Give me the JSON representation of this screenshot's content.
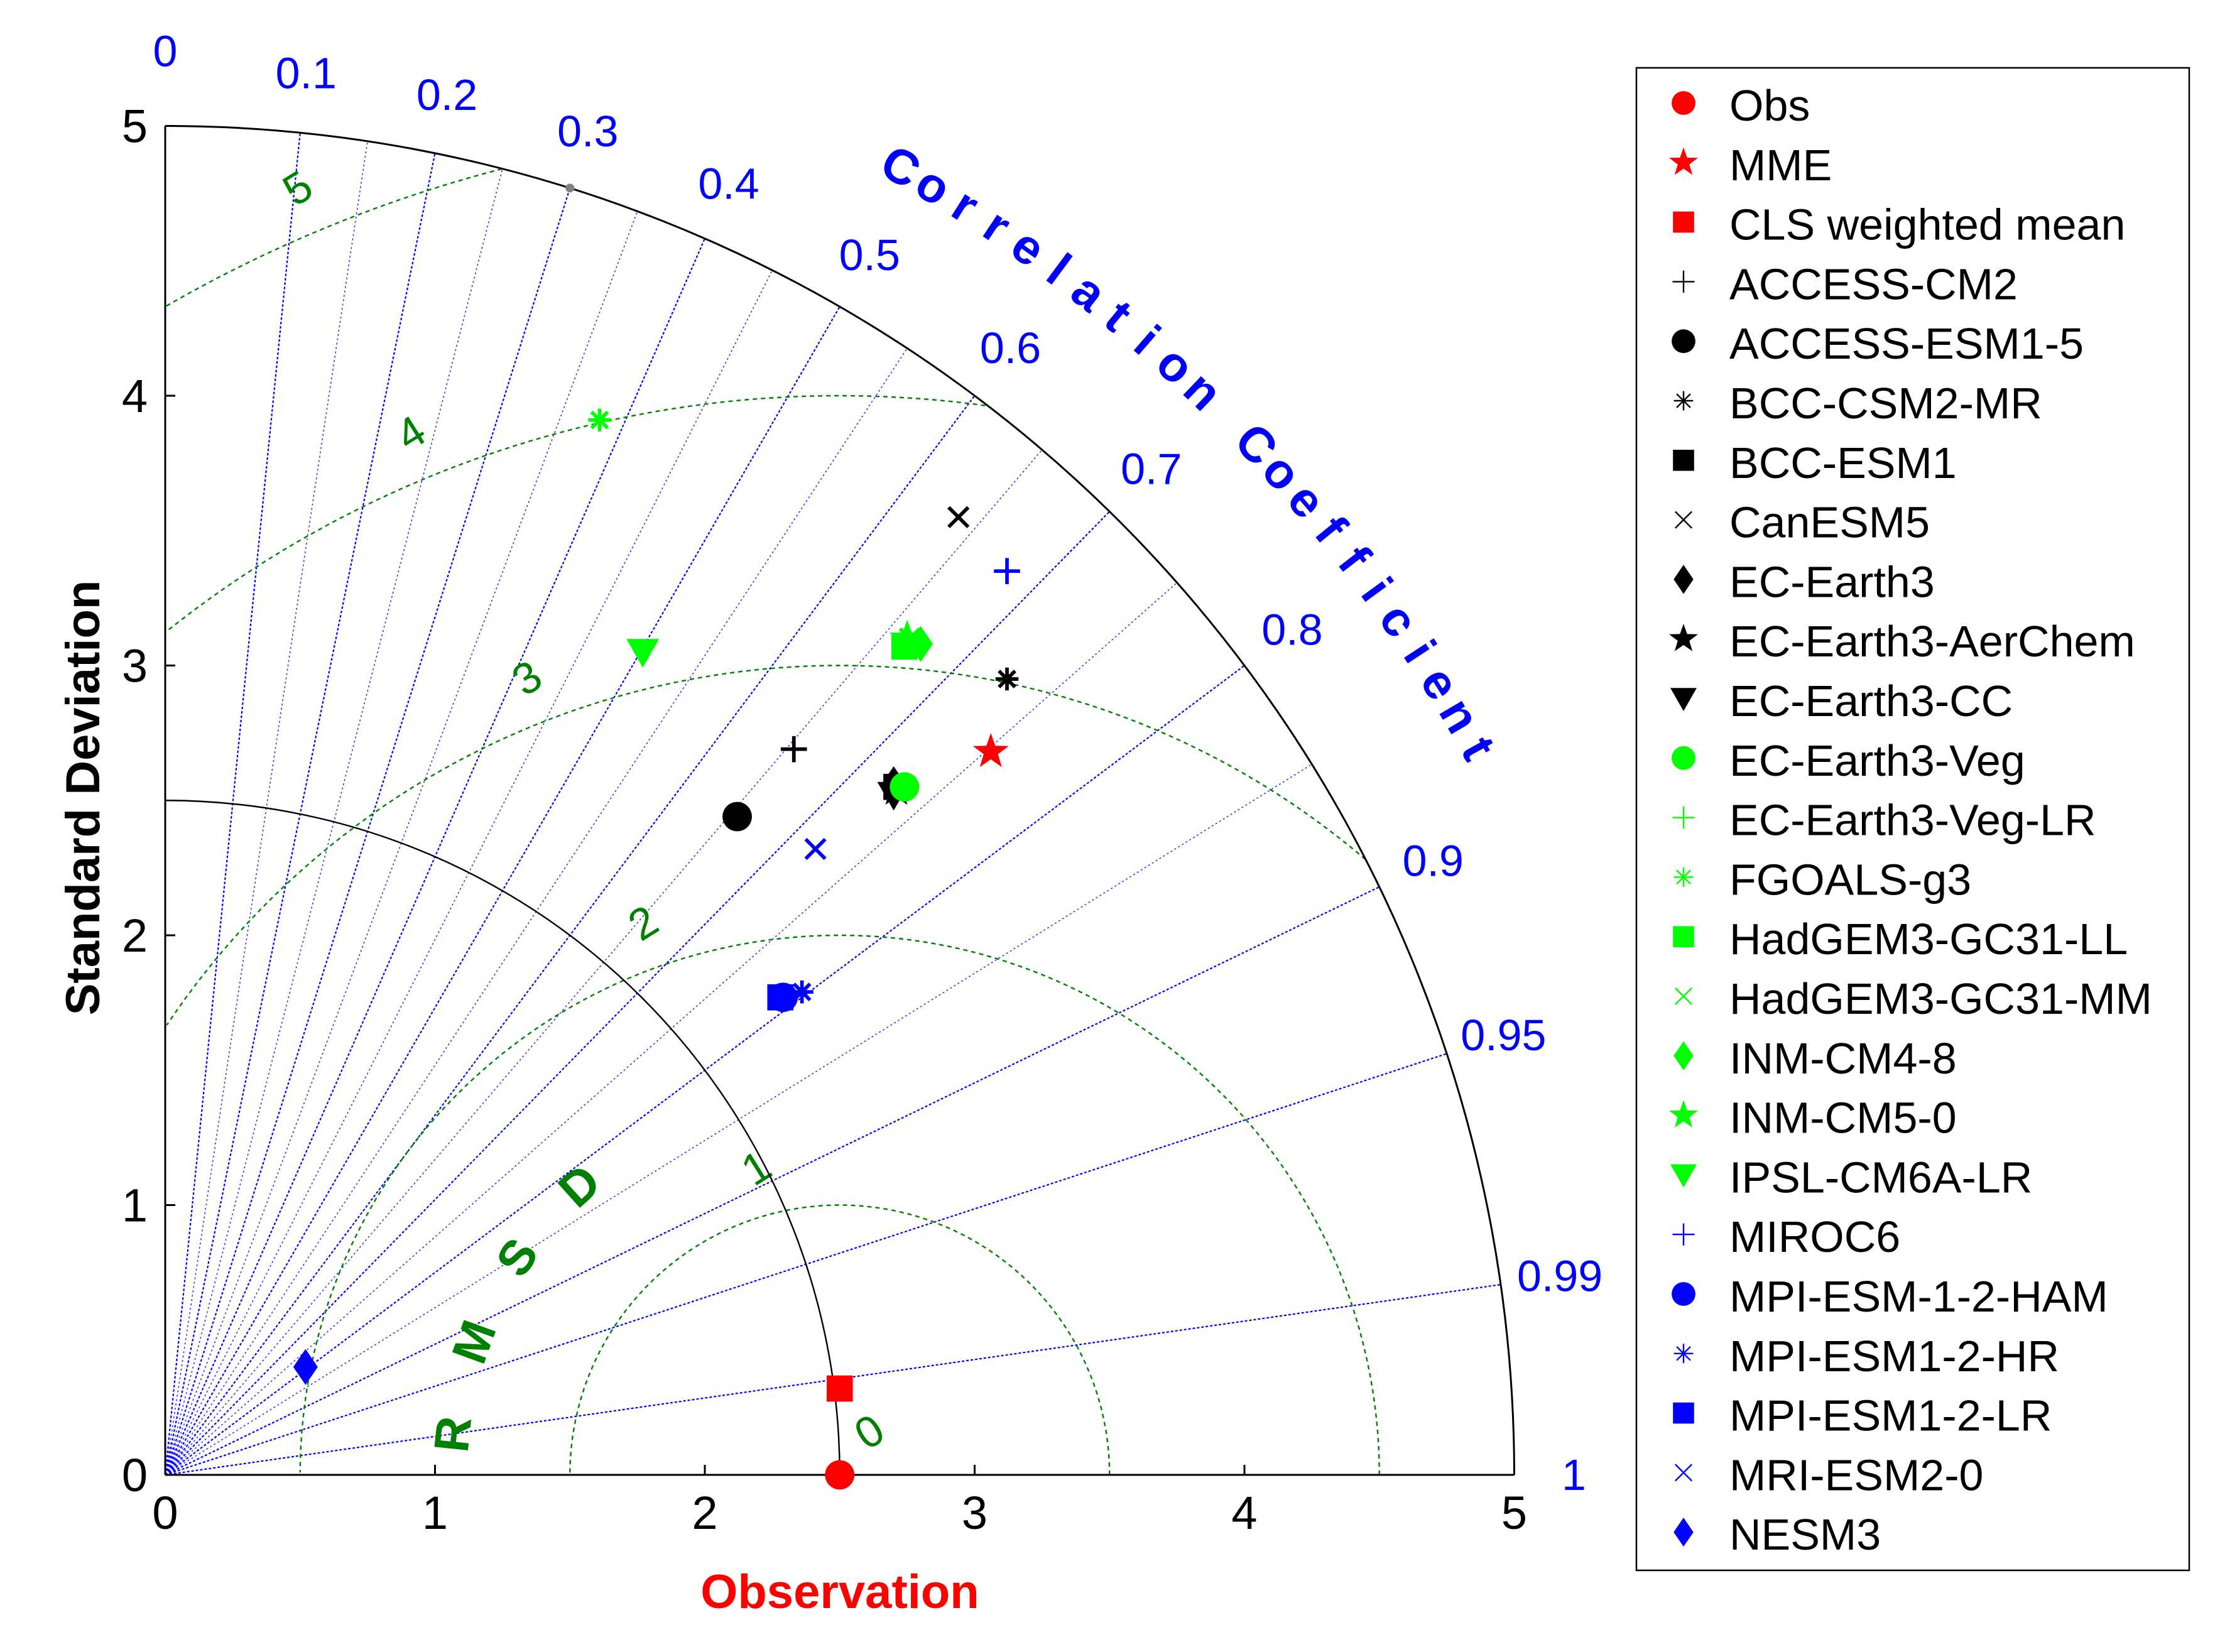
{
  "chart_data": {
    "type": "taylor_diagram",
    "xlabel": "Observation",
    "ylabel": "Standard Deviation",
    "corr_label": "Correlation Coefficient",
    "rms_label": "RMSD",
    "std_max": 5,
    "std_ticks": [
      "0",
      "1",
      "2",
      "3",
      "4",
      "5"
    ],
    "obs_std": 2.5,
    "corr_ticks": [
      {
        "value": 0,
        "label": "0"
      },
      {
        "value": 0.1,
        "label": "0.1"
      },
      {
        "value": 0.2,
        "label": "0.2"
      },
      {
        "value": 0.3,
        "label": "0.3"
      },
      {
        "value": 0.4,
        "label": "0.4"
      },
      {
        "value": 0.5,
        "label": "0.5"
      },
      {
        "value": 0.6,
        "label": "0.6"
      },
      {
        "value": 0.7,
        "label": "0.7"
      },
      {
        "value": 0.8,
        "label": "0.8"
      },
      {
        "value": 0.9,
        "label": "0.9"
      },
      {
        "value": 0.95,
        "label": "0.95"
      },
      {
        "value": 0.99,
        "label": "0.99"
      },
      {
        "value": 1,
        "label": "1"
      }
    ],
    "rms_contours": [
      {
        "value": 0,
        "label": "0"
      },
      {
        "value": 1,
        "label": "1"
      },
      {
        "value": 2,
        "label": "2"
      },
      {
        "value": 3,
        "label": "3"
      },
      {
        "value": 4,
        "label": "4"
      },
      {
        "value": 5,
        "label": "5"
      }
    ],
    "models": [
      {
        "name": "Obs",
        "x": 2.5,
        "y": 0.0,
        "marker": "circle-filled",
        "color": "#ff0000"
      },
      {
        "name": "MME",
        "x": 3.06,
        "y": 2.68,
        "marker": "star",
        "color": "#ff0000"
      },
      {
        "name": "CLS weighted mean",
        "x": 2.5,
        "y": 0.32,
        "marker": "square",
        "color": "#ff0000"
      },
      {
        "name": "ACCESS-CM2",
        "x": 2.33,
        "y": 2.69,
        "marker": "plus",
        "color": "#000000"
      },
      {
        "name": "ACCESS-ESM1-5",
        "x": 2.12,
        "y": 2.44,
        "marker": "circle-filled",
        "color": "#000000"
      },
      {
        "name": "BCC-CSM2-MR",
        "x": 3.12,
        "y": 2.95,
        "marker": "asterisk",
        "color": "#000000"
      },
      {
        "name": "BCC-ESM1",
        "x": 2.71,
        "y": 2.55,
        "marker": "square",
        "color": "#000000"
      },
      {
        "name": "CanESM5",
        "x": 2.94,
        "y": 3.55,
        "marker": "cross",
        "color": "#000000"
      },
      {
        "name": "EC-Earth3",
        "x": 2.7,
        "y": 2.56,
        "marker": "diamond",
        "color": "#000000"
      },
      {
        "name": "EC-Earth3-AerChem",
        "x": 2.71,
        "y": 2.54,
        "marker": "star",
        "color": "#000000"
      },
      {
        "name": "EC-Earth3-CC",
        "x": 2.7,
        "y": 2.52,
        "marker": "triangle-down",
        "color": "#000000"
      },
      {
        "name": "EC-Earth3-Veg",
        "x": 2.74,
        "y": 2.55,
        "marker": "circle-filled",
        "color": "#00ff00"
      },
      {
        "name": "EC-Earth3-Veg-LR",
        "x": 2.75,
        "y": 3.09,
        "marker": "plus",
        "color": "#00ff00"
      },
      {
        "name": "FGOALS-g3",
        "x": 1.61,
        "y": 3.91,
        "marker": "asterisk",
        "color": "#00ff00"
      },
      {
        "name": "HadGEM3-GC31-LL",
        "x": 2.74,
        "y": 3.07,
        "marker": "square",
        "color": "#00ff00"
      },
      {
        "name": "HadGEM3-GC31-MM",
        "x": 2.76,
        "y": 3.1,
        "marker": "cross",
        "color": "#00ff00"
      },
      {
        "name": "INM-CM4-8",
        "x": 2.8,
        "y": 3.08,
        "marker": "diamond",
        "color": "#00ff00"
      },
      {
        "name": "INM-CM5-0",
        "x": 2.75,
        "y": 3.1,
        "marker": "star",
        "color": "#00ff00"
      },
      {
        "name": "IPSL-CM6A-LR",
        "x": 1.77,
        "y": 3.05,
        "marker": "triangle-down",
        "color": "#00ff00"
      },
      {
        "name": "MIROC6",
        "x": 3.12,
        "y": 3.35,
        "marker": "plus",
        "color": "#0000ff"
      },
      {
        "name": "MPI-ESM-1-2-HAM",
        "x": 2.29,
        "y": 1.77,
        "marker": "circle-filled",
        "color": "#0000ff"
      },
      {
        "name": "MPI-ESM1-2-HR",
        "x": 2.36,
        "y": 1.79,
        "marker": "asterisk",
        "color": "#0000ff"
      },
      {
        "name": "MPI-ESM1-2-LR",
        "x": 2.28,
        "y": 1.77,
        "marker": "square",
        "color": "#0000ff"
      },
      {
        "name": "MRI-ESM2-0",
        "x": 2.41,
        "y": 2.32,
        "marker": "cross",
        "color": "#0000ff"
      },
      {
        "name": "NESM3",
        "x": 0.52,
        "y": 0.4,
        "marker": "diamond",
        "color": "#0000ff"
      }
    ],
    "colors": {
      "axis": "#000000",
      "corr_lines": "#0000ff",
      "rms_contours": "#008000",
      "obs_label": "#ff0000"
    }
  }
}
